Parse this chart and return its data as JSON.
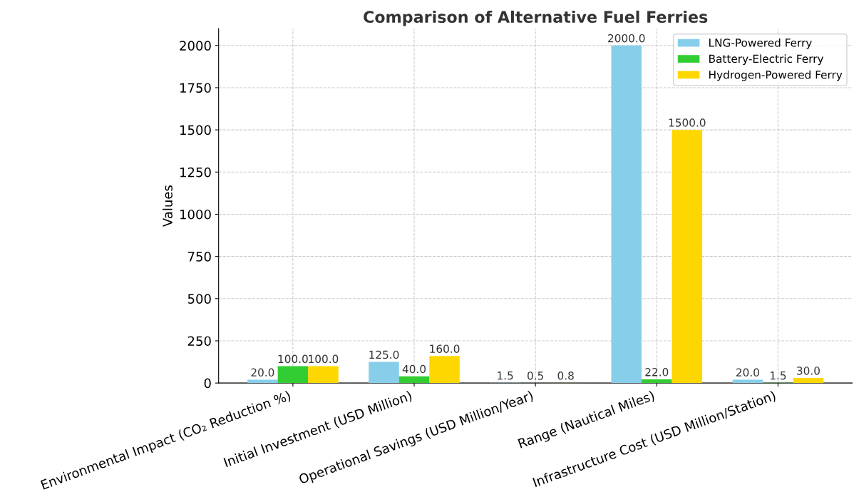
{
  "chart_data": {
    "type": "bar",
    "title": "Comparison of Alternative Fuel Ferries",
    "ylabel": "Values",
    "categories": [
      "Environmental Impact (CO₂ Reduction %)",
      "Initial Investment (USD Million)",
      "Operational Savings (USD Million/Year)",
      "Range (Nautical Miles)",
      "Infrastructure Cost (USD Million/Station)"
    ],
    "series": [
      {
        "name": "LNG-Powered Ferry",
        "color": "#87ceeb",
        "values": [
          20,
          125,
          1.5,
          2000,
          20
        ],
        "value_labels": [
          "20.0",
          "125.0",
          "1.5",
          "2000.0",
          "20.0"
        ]
      },
      {
        "name": "Battery-Electric Ferry",
        "color": "#32cd32",
        "values": [
          100,
          40,
          0.5,
          22,
          1.5
        ],
        "value_labels": [
          "100.0",
          "40.0",
          "0.5",
          "22.0",
          "1.5"
        ]
      },
      {
        "name": "Hydrogen-Powered Ferry",
        "color": "#ffd700",
        "values": [
          100,
          160,
          0.8,
          1500,
          30
        ],
        "value_labels": [
          "100.0",
          "160.0",
          "0.8",
          "1500.0",
          "30.0"
        ]
      }
    ],
    "ylim": [
      0,
      2100
    ],
    "yticks": [
      0,
      250,
      500,
      750,
      1000,
      1250,
      1500,
      1750,
      2000
    ],
    "grid": true,
    "legend": "top right"
  }
}
